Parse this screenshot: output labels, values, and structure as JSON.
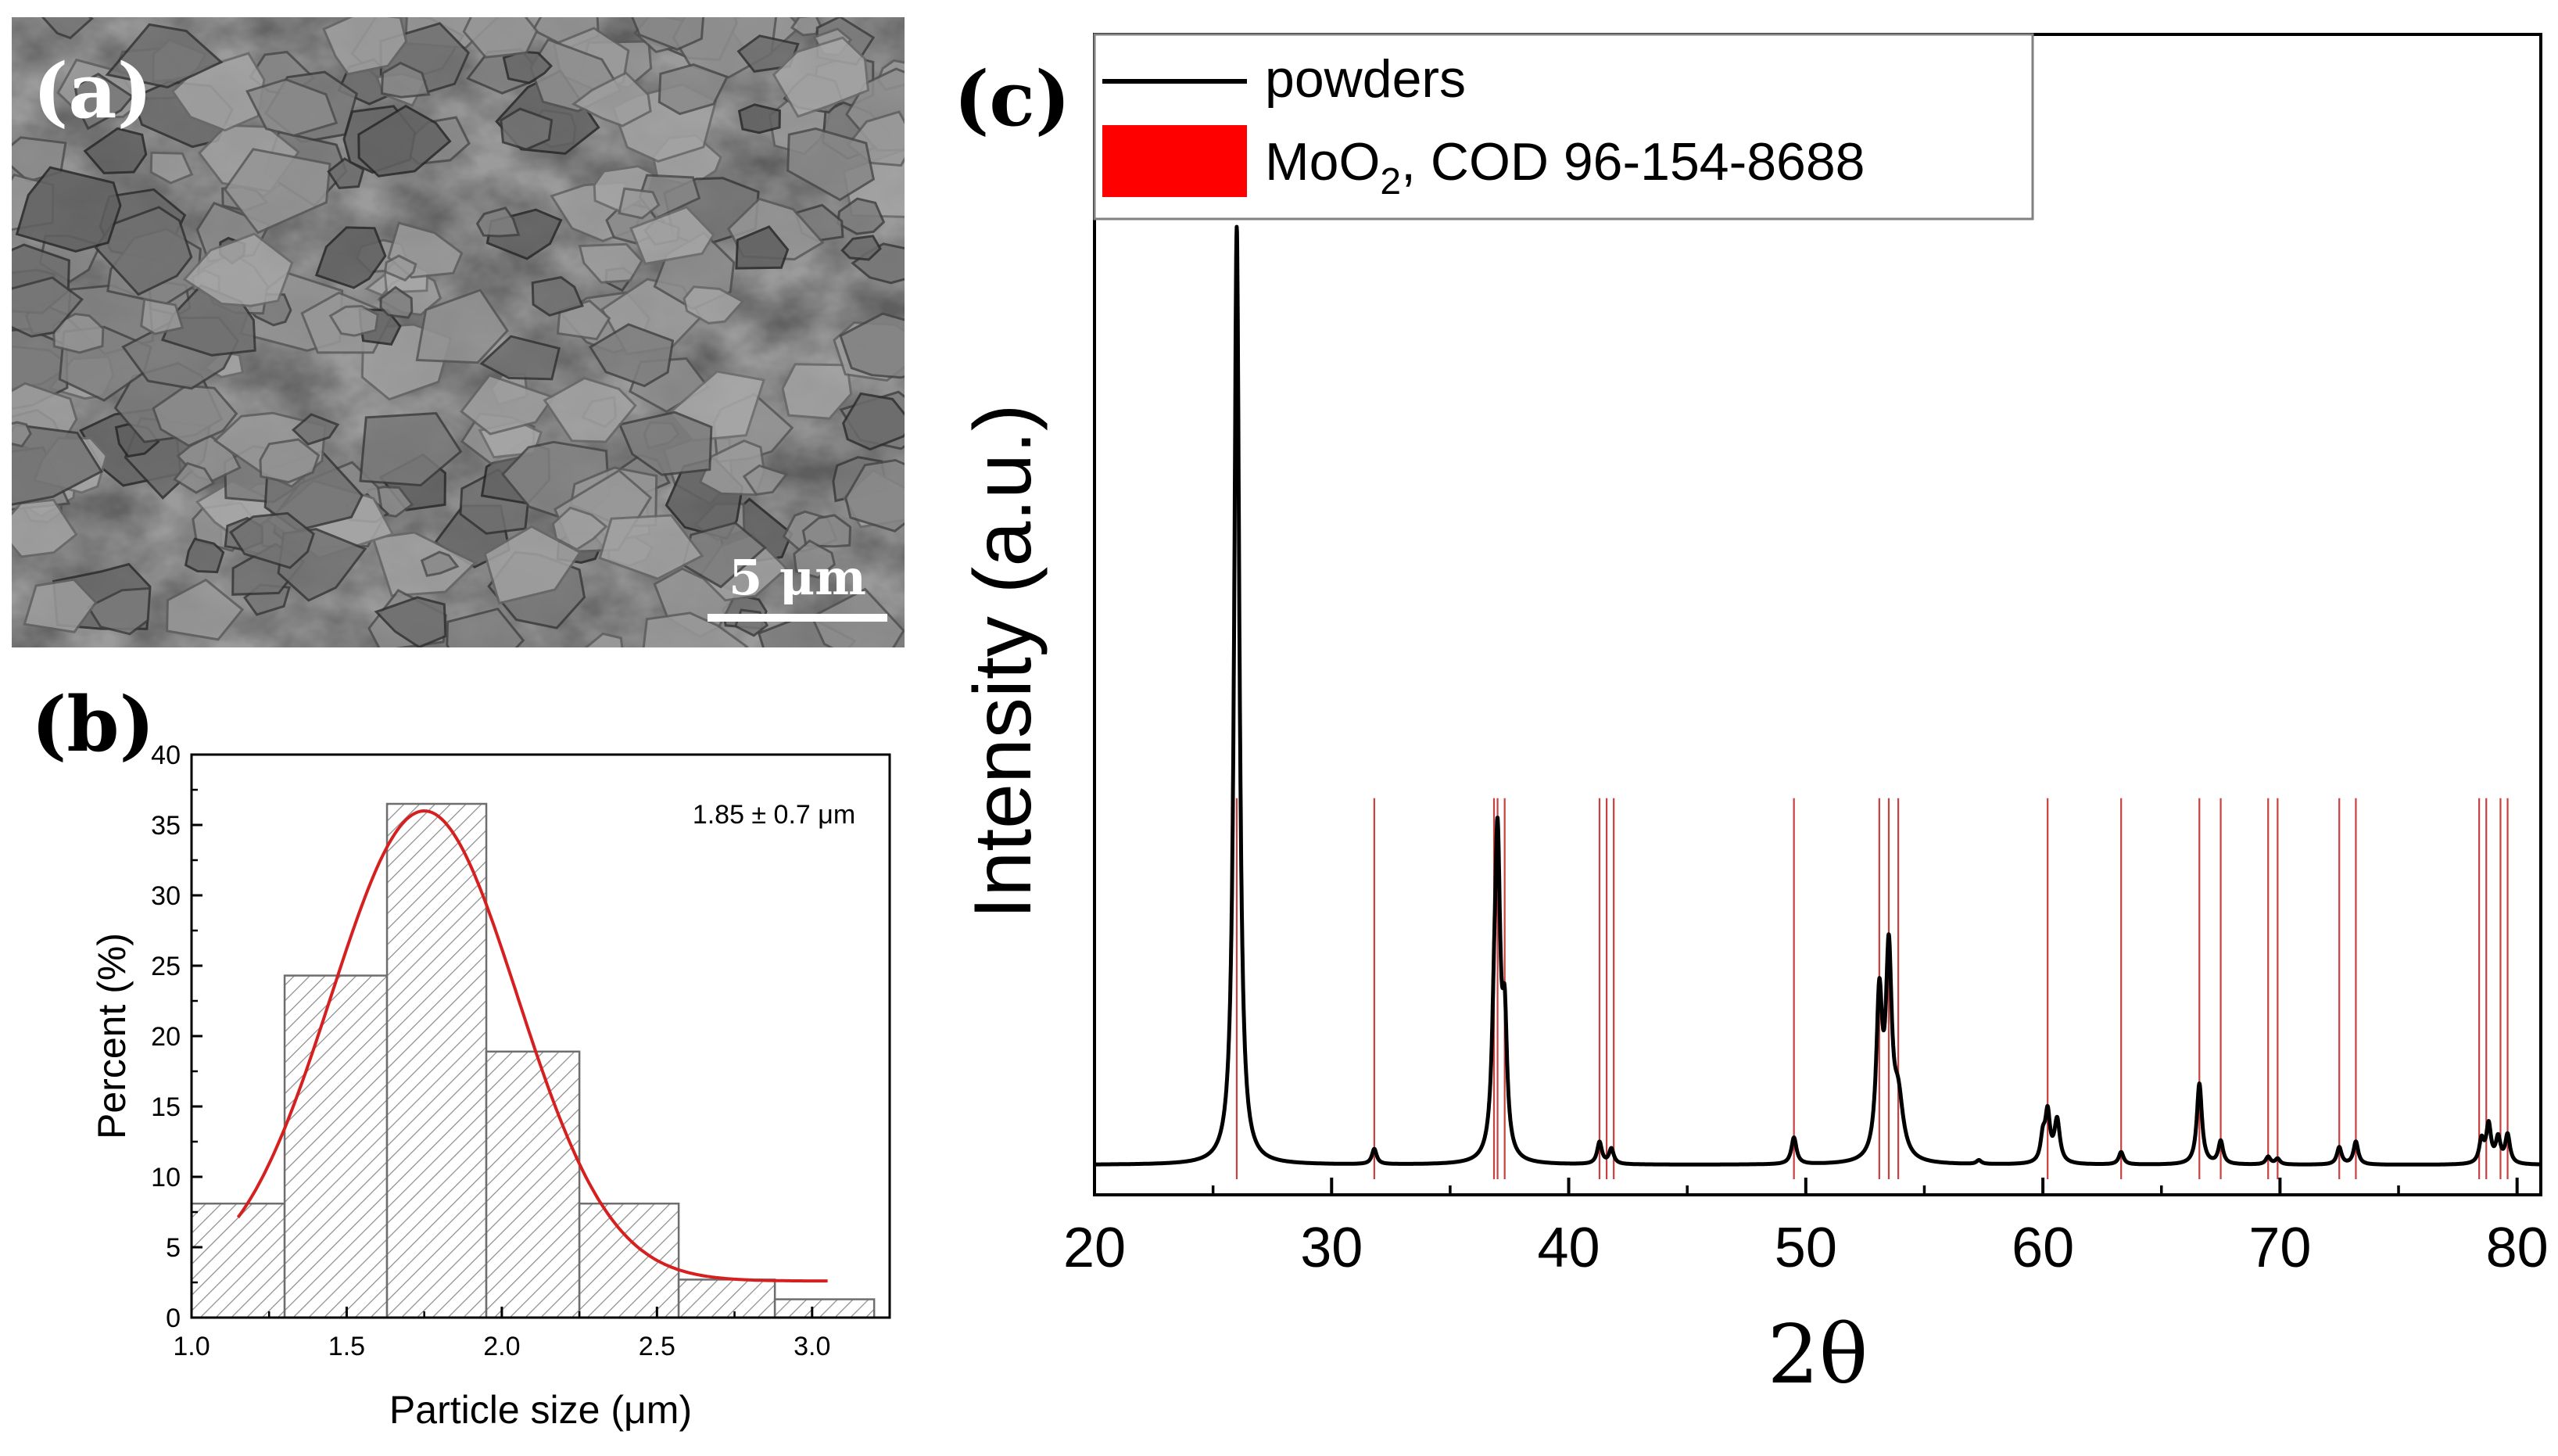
{
  "panels": {
    "a": {
      "label": "(a)",
      "scale_bar_label": "5 μm",
      "description_icon": "sem-micrograph-image"
    },
    "b": {
      "label": "(b)",
      "annotation": "1.85 ± 0.7 μm"
    },
    "c": {
      "label": "(c)"
    }
  },
  "colors": {
    "hist_edge": "#6e6e6e",
    "fit_curve": "#d62020",
    "xrd_line": "#000000",
    "reference_line": "#c84040",
    "legend_patch": "#ff0000"
  },
  "chart_data": [
    {
      "id": "histogram",
      "type": "bar",
      "xlabel": "Particle size (μm)",
      "ylabel": "Percent (%)",
      "xlim": [
        1.0,
        3.25
      ],
      "ylim": [
        0,
        40
      ],
      "xticks": [
        "1.0",
        "1.5",
        "2.0",
        "2.5",
        "3.0"
      ],
      "xtick_values": [
        1.0,
        1.5,
        2.0,
        2.5,
        3.0
      ],
      "yticks": [
        "0",
        "5",
        "10",
        "15",
        "20",
        "25",
        "30",
        "35",
        "40"
      ],
      "ytick_values": [
        0,
        5,
        10,
        15,
        20,
        25,
        30,
        35,
        40
      ],
      "bins": [
        {
          "from": 1.0,
          "to": 1.3,
          "value": 8.1
        },
        {
          "from": 1.3,
          "to": 1.63,
          "value": 24.3
        },
        {
          "from": 1.63,
          "to": 1.95,
          "value": 36.5
        },
        {
          "from": 1.95,
          "to": 2.25,
          "value": 18.9
        },
        {
          "from": 2.25,
          "to": 2.57,
          "value": 8.1
        },
        {
          "from": 2.57,
          "to": 2.88,
          "value": 2.7
        },
        {
          "from": 2.88,
          "to": 3.2,
          "value": 1.3
        }
      ],
      "fit": {
        "name": "Gaussian fit",
        "xrange": [
          1.15,
          3.05
        ],
        "peak_x": 1.75,
        "peak_y": 36.0,
        "sigma": 0.3,
        "baseline": 2.6
      }
    },
    {
      "id": "xrd",
      "type": "line",
      "xlabel": "2θ",
      "ylabel": "Intensity (a.u.)",
      "xlim": [
        20,
        81
      ],
      "ylim": [
        0,
        100
      ],
      "xticks": [
        "20",
        "30",
        "40",
        "50",
        "60",
        "70",
        "80"
      ],
      "xtick_values": [
        20,
        30,
        40,
        50,
        60,
        70,
        80
      ],
      "series": [
        {
          "name": "powders",
          "baseline": 1.5,
          "peaks": [
            {
              "x": 26.0,
              "h": 98.5,
              "w": 0.13
            },
            {
              "x": 31.8,
              "h": 1.6,
              "w": 0.12
            },
            {
              "x": 36.85,
              "h": 7.0,
              "w": 0.12
            },
            {
              "x": 37.0,
              "h": 32.0,
              "w": 0.14
            },
            {
              "x": 37.3,
              "h": 12.5,
              "w": 0.12
            },
            {
              "x": 41.3,
              "h": 2.3,
              "w": 0.12
            },
            {
              "x": 41.8,
              "h": 1.6,
              "w": 0.12
            },
            {
              "x": 49.5,
              "h": 2.8,
              "w": 0.13
            },
            {
              "x": 53.1,
              "h": 16.5,
              "w": 0.15
            },
            {
              "x": 53.5,
              "h": 20.5,
              "w": 0.15
            },
            {
              "x": 53.9,
              "h": 6.0,
              "w": 0.25
            },
            {
              "x": 57.3,
              "h": 0.4,
              "w": 0.12
            },
            {
              "x": 60.0,
              "h": 2.5,
              "w": 0.12
            },
            {
              "x": 60.2,
              "h": 5.0,
              "w": 0.12
            },
            {
              "x": 60.6,
              "h": 4.5,
              "w": 0.14
            },
            {
              "x": 63.3,
              "h": 1.3,
              "w": 0.12
            },
            {
              "x": 66.6,
              "h": 8.5,
              "w": 0.13
            },
            {
              "x": 67.5,
              "h": 2.4,
              "w": 0.12
            },
            {
              "x": 69.5,
              "h": 0.8,
              "w": 0.12
            },
            {
              "x": 69.9,
              "h": 0.6,
              "w": 0.12
            },
            {
              "x": 72.5,
              "h": 1.8,
              "w": 0.12
            },
            {
              "x": 73.2,
              "h": 2.4,
              "w": 0.12
            },
            {
              "x": 78.5,
              "h": 2.4,
              "w": 0.12
            },
            {
              "x": 78.8,
              "h": 4.0,
              "w": 0.12
            },
            {
              "x": 79.2,
              "h": 2.6,
              "w": 0.12
            },
            {
              "x": 79.6,
              "h": 3.0,
              "w": 0.12
            }
          ]
        }
      ],
      "reference": {
        "name_prefix": "MoO",
        "name_subscript": "2",
        "name_suffix": ", COD 96-154-8688",
        "positions": [
          26.0,
          31.8,
          36.85,
          37.0,
          37.3,
          41.3,
          41.6,
          41.9,
          49.5,
          53.1,
          53.5,
          53.9,
          60.2,
          63.3,
          66.6,
          67.5,
          69.5,
          69.9,
          72.5,
          73.2,
          78.4,
          78.7,
          79.3,
          79.6
        ],
        "height": 40
      },
      "legend": [
        "powders",
        "MoO2, COD 96-154-8688"
      ]
    }
  ]
}
